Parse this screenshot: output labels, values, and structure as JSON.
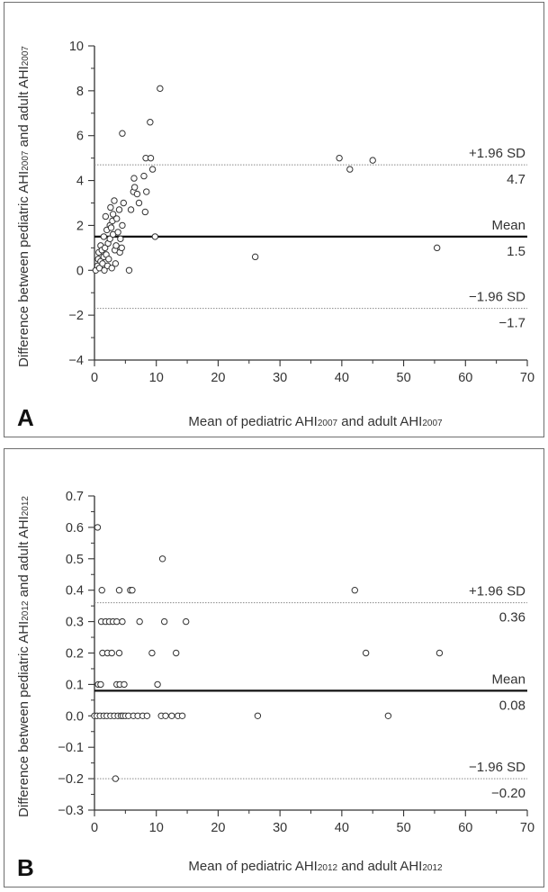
{
  "chart_data": [
    {
      "type": "scatter",
      "panel": "A",
      "title": "",
      "xlabel_parts": [
        "Mean of pediatric AHI",
        "2007",
        " and adult AHI",
        "2007"
      ],
      "ylabel_parts": [
        "Difference between pediatric AHI",
        "2007",
        " and adult AHI",
        "2007"
      ],
      "xlim": [
        0,
        70
      ],
      "ylim": [
        -4,
        10
      ],
      "xticks": [
        0,
        10,
        20,
        30,
        40,
        50,
        60,
        70
      ],
      "yticks": [
        -4,
        -2,
        0,
        2,
        4,
        6,
        8,
        10
      ],
      "ytick_labels": [
        "−4",
        "−2",
        "0",
        "2",
        "4",
        "6",
        "8",
        "10"
      ],
      "ref_lines": [
        {
          "name": "+1.96 SD",
          "value": 4.7,
          "value_label": "4.7",
          "style": "dotted"
        },
        {
          "name": "Mean",
          "value": 1.5,
          "value_label": "1.5",
          "style": "solid"
        },
        {
          "name": "−1.96 SD",
          "value": -1.7,
          "value_label": "−1.7",
          "style": "dotted"
        }
      ],
      "points": [
        [
          0.2,
          0.0
        ],
        [
          0.5,
          0.2
        ],
        [
          0.6,
          0.5
        ],
        [
          0.7,
          0.8
        ],
        [
          0.8,
          0.1
        ],
        [
          1.0,
          0.4
        ],
        [
          1.0,
          1.1
        ],
        [
          1.2,
          0.9
        ],
        [
          1.3,
          0.3
        ],
        [
          1.5,
          0.6
        ],
        [
          1.5,
          1.5
        ],
        [
          1.6,
          0.0
        ],
        [
          1.7,
          1.0
        ],
        [
          1.8,
          2.4
        ],
        [
          1.9,
          0.7
        ],
        [
          2.0,
          1.8
        ],
        [
          2.1,
          0.2
        ],
        [
          2.2,
          1.2
        ],
        [
          2.3,
          0.5
        ],
        [
          2.5,
          1.4
        ],
        [
          2.5,
          2.0
        ],
        [
          2.6,
          2.8
        ],
        [
          2.7,
          1.9
        ],
        [
          2.8,
          0.1
        ],
        [
          2.9,
          2.2
        ],
        [
          3.0,
          1.6
        ],
        [
          3.0,
          2.5
        ],
        [
          3.2,
          3.1
        ],
        [
          3.3,
          0.9
        ],
        [
          3.4,
          0.3
        ],
        [
          3.5,
          1.1
        ],
        [
          3.6,
          2.3
        ],
        [
          3.8,
          1.7
        ],
        [
          4.0,
          2.7
        ],
        [
          4.1,
          0.8
        ],
        [
          4.2,
          1.4
        ],
        [
          4.4,
          1.0
        ],
        [
          4.5,
          2.0
        ],
        [
          4.5,
          6.1
        ],
        [
          4.7,
          3.0
        ],
        [
          5.6,
          0.0
        ],
        [
          5.9,
          2.7
        ],
        [
          6.3,
          3.5
        ],
        [
          6.4,
          4.1
        ],
        [
          6.5,
          3.7
        ],
        [
          6.9,
          3.4
        ],
        [
          7.2,
          3.0
        ],
        [
          8.0,
          4.2
        ],
        [
          8.2,
          2.6
        ],
        [
          8.3,
          5.0
        ],
        [
          8.4,
          3.5
        ],
        [
          9.0,
          6.6
        ],
        [
          9.1,
          5.0
        ],
        [
          9.4,
          4.5
        ],
        [
          9.8,
          1.5
        ],
        [
          10.6,
          8.1
        ],
        [
          26.0,
          0.6
        ],
        [
          39.6,
          5.0
        ],
        [
          41.3,
          4.5
        ],
        [
          45.0,
          4.9
        ],
        [
          55.4,
          1.0
        ]
      ]
    },
    {
      "type": "scatter",
      "panel": "B",
      "title": "",
      "xlabel_parts": [
        "Mean of pediatric AHI",
        "2012",
        " and adult AHI",
        "2012"
      ],
      "ylabel_parts": [
        "Difference between pediatric AHI",
        "2012",
        " and adult AHI",
        "2012"
      ],
      "xlim": [
        0,
        70
      ],
      "ylim": [
        -0.3,
        0.7
      ],
      "xticks": [
        0,
        10,
        20,
        30,
        40,
        50,
        60,
        70
      ],
      "yticks": [
        -0.3,
        -0.2,
        -0.1,
        0.0,
        0.1,
        0.2,
        0.3,
        0.4,
        0.5,
        0.6,
        0.7
      ],
      "ytick_labels": [
        "−0.3",
        "−0.2",
        "−0.1",
        "0.0",
        "0.1",
        "0.2",
        "0.3",
        "0.4",
        "0.5",
        "0.6",
        "0.7"
      ],
      "ref_lines": [
        {
          "name": "+1.96 SD",
          "value": 0.36,
          "value_label": "0.36",
          "style": "dotted"
        },
        {
          "name": "Mean",
          "value": 0.08,
          "value_label": "0.08",
          "style": "solid"
        },
        {
          "name": "−1.96 SD",
          "value": -0.2,
          "value_label": "−0.20",
          "style": "dotted"
        }
      ],
      "points": [
        [
          0.0,
          0.0
        ],
        [
          0.4,
          0.0
        ],
        [
          0.5,
          0.6
        ],
        [
          0.6,
          0.1
        ],
        [
          0.9,
          0.0
        ],
        [
          1.0,
          0.1
        ],
        [
          1.1,
          0.3
        ],
        [
          1.2,
          0.4
        ],
        [
          1.3,
          0.2
        ],
        [
          1.5,
          0.0
        ],
        [
          1.8,
          0.3
        ],
        [
          2.0,
          0.0
        ],
        [
          2.1,
          0.2
        ],
        [
          2.4,
          0.3
        ],
        [
          2.6,
          0.0
        ],
        [
          2.8,
          0.2
        ],
        [
          3.0,
          0.3
        ],
        [
          3.2,
          0.0
        ],
        [
          3.4,
          -0.2
        ],
        [
          3.6,
          0.1
        ],
        [
          3.6,
          0.3
        ],
        [
          3.8,
          0.0
        ],
        [
          4.0,
          0.2
        ],
        [
          4.0,
          0.4
        ],
        [
          4.1,
          0.1
        ],
        [
          4.3,
          0.0
        ],
        [
          4.5,
          0.3
        ],
        [
          4.6,
          0.0
        ],
        [
          4.8,
          0.1
        ],
        [
          5.0,
          0.0
        ],
        [
          5.5,
          0.0
        ],
        [
          5.8,
          0.4
        ],
        [
          6.1,
          0.4
        ],
        [
          6.3,
          0.0
        ],
        [
          7.0,
          0.0
        ],
        [
          7.3,
          0.3
        ],
        [
          7.8,
          0.0
        ],
        [
          8.5,
          0.0
        ],
        [
          9.3,
          0.2
        ],
        [
          10.2,
          0.1
        ],
        [
          10.8,
          0.0
        ],
        [
          11.0,
          0.5
        ],
        [
          11.3,
          0.3
        ],
        [
          11.5,
          0.0
        ],
        [
          12.5,
          0.0
        ],
        [
          13.2,
          0.2
        ],
        [
          13.5,
          0.0
        ],
        [
          14.2,
          0.0
        ],
        [
          14.8,
          0.3
        ],
        [
          26.4,
          0.0
        ],
        [
          42.1,
          0.4
        ],
        [
          43.9,
          0.2
        ],
        [
          47.5,
          0.0
        ],
        [
          55.8,
          0.2
        ]
      ]
    }
  ]
}
